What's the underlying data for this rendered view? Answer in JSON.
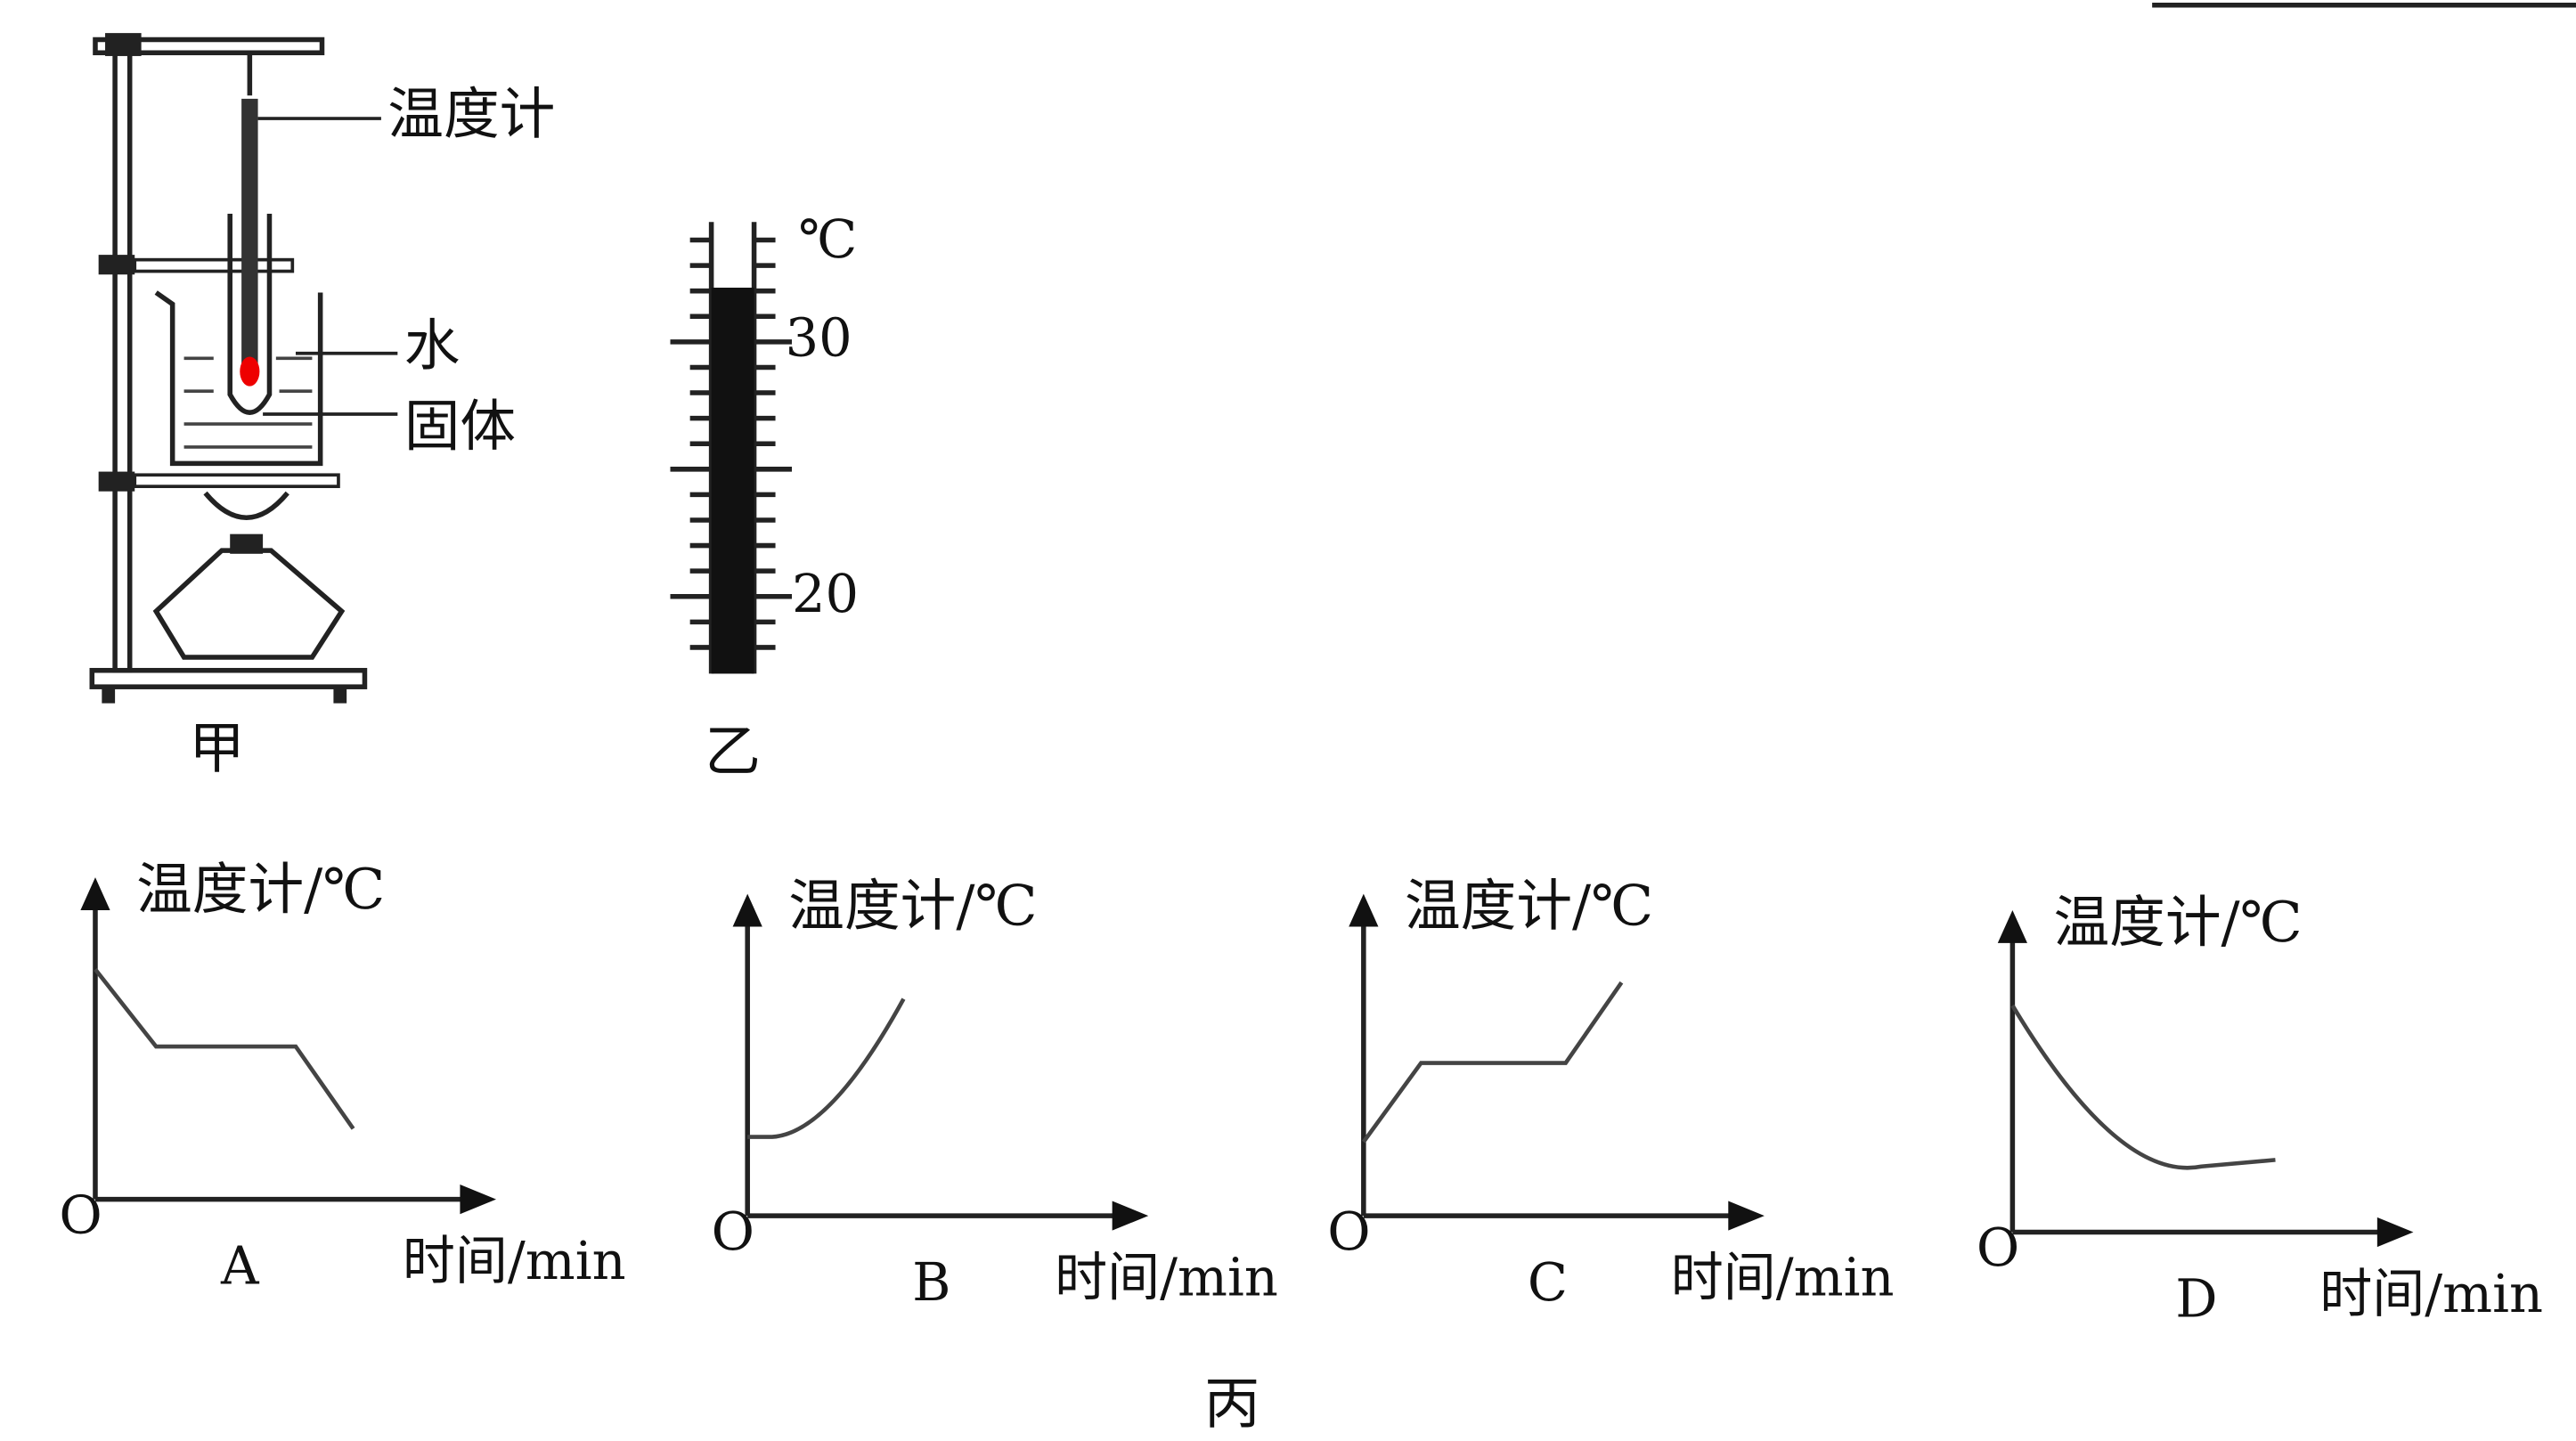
{
  "apparatus": {
    "thermometer_label": "温度计",
    "water_label": "水",
    "solid_label": "固体",
    "caption": "甲"
  },
  "thermometer": {
    "unit": "℃",
    "upper_label": 30,
    "lower_label": 20,
    "caption": "乙"
  },
  "graphs": [
    {
      "y_label": "温度计/℃",
      "x_label": "时间/min",
      "origin": "O",
      "letter": "A"
    },
    {
      "y_label": "温度计/℃",
      "x_label": "时间/min",
      "origin": "O",
      "letter": "B"
    },
    {
      "y_label": "温度计/℃",
      "x_label": "时间/min",
      "origin": "O",
      "letter": "C"
    },
    {
      "y_label": "温度计/℃",
      "x_label": "时间/min",
      "origin": "O",
      "letter": "D"
    }
  ],
  "caption": "丙"
}
